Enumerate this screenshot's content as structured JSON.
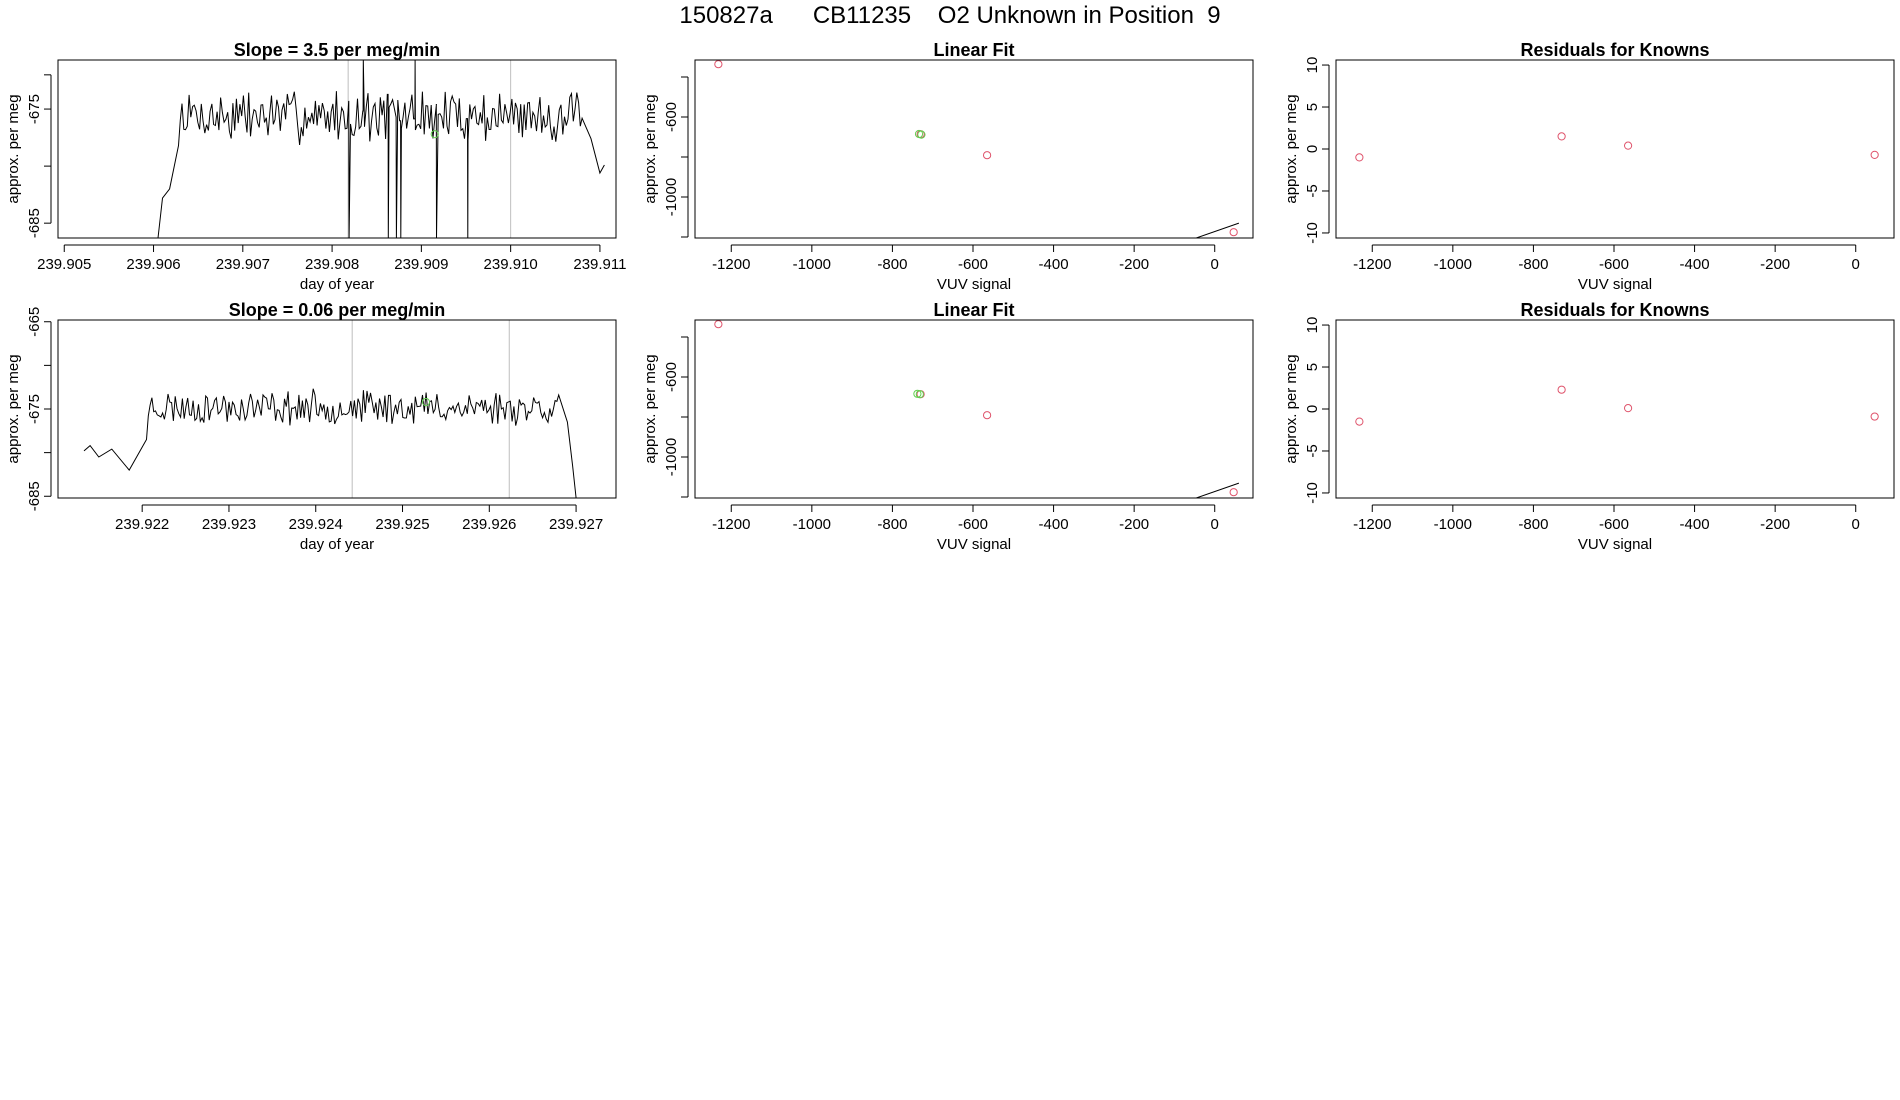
{
  "page": {
    "title": "150827a      CB11235    O2 Unknown in Position  9"
  },
  "colors": {
    "axis": "#000000",
    "line": "#000000",
    "vline": "#bebebe",
    "known_point": "#df536b",
    "unknown_point": "#61d04f"
  },
  "chart_data": [
    {
      "type": "line",
      "title": "Slope =  3.5  per meg/min",
      "xlabel": "day of year",
      "ylabel": "approx. per meg",
      "xlim": [
        239.90493,
        239.91118
      ],
      "ylim": [
        -686.3,
        -670.7
      ],
      "xticks": [
        "239.905",
        "239.906",
        "239.907",
        "239.908",
        "239.909",
        "239.910",
        "239.911"
      ],
      "xtick_values": [
        239.905,
        239.906,
        239.907,
        239.908,
        239.909,
        239.91,
        239.911
      ],
      "yticks": [
        "-685",
        "-675"
      ],
      "ytick_values": [
        -685,
        -675
      ],
      "ytick_minor_values": [
        -680,
        -672
      ],
      "vlines": [
        239.90818,
        239.91
      ],
      "green_point": {
        "x": 239.90915,
        "y": -677.2
      },
      "series": [
        {
          "name": "trace",
          "start": 239.90605,
          "end": 239.91105,
          "drops": [
            [
              239.90819,
              -686.3
            ],
            [
              239.90835,
              -670.7
            ],
            [
              239.90863,
              -686.3
            ],
            [
              239.90872,
              -686.3
            ],
            [
              239.90877,
              -686.3
            ],
            [
              239.90893,
              -670.7
            ],
            [
              239.90917,
              -686.3
            ],
            [
              239.90952,
              -686.3
            ]
          ],
          "seed": 7,
          "mean": -675.6,
          "amp": 1.9,
          "ramp": [
            [
              239.90605,
              -686.3
            ],
            [
              239.9061,
              -682.8
            ],
            [
              239.90618,
              -682.0
            ],
            [
              239.90628,
              -678.2
            ]
          ],
          "tail": [
            [
              239.9108,
              -675.8
            ],
            [
              239.9109,
              -677.6
            ],
            [
              239.911,
              -680.6
            ],
            [
              239.91105,
              -679.9
            ]
          ]
        }
      ]
    },
    {
      "type": "scatter",
      "title": "Linear Fit",
      "xlabel": "VUV signal",
      "ylabel": "approx. per meg",
      "xlim": [
        -1290,
        95
      ],
      "ylim": [
        -1205,
        -315
      ],
      "xticks": [
        "-1200",
        "-1000",
        "-800",
        "-600",
        "-400",
        "-200",
        "0"
      ],
      "xtick_values": [
        -1200,
        -1000,
        -800,
        -600,
        -400,
        -200,
        0
      ],
      "yticks": [
        "-600",
        "-1000"
      ],
      "ytick_values": [
        -600,
        -1000
      ],
      "ytick_minor_values": [
        -400,
        -800,
        -1200
      ],
      "fit_line": {
        "slope": 0.7003,
        "intercept": -1172.8,
        "x0": -1265,
        "x1": 60
      },
      "known_points": [
        {
          "x": -1232,
          "y": -336
        },
        {
          "x": -730,
          "y": -686
        },
        {
          "x": -565,
          "y": -791
        },
        {
          "x": 47,
          "y": -1176
        }
      ],
      "unknown_points": [
        {
          "x": -734,
          "y": -685
        },
        {
          "x": -728,
          "y": -688
        }
      ]
    },
    {
      "type": "scatter",
      "title": "Residuals for Knowns",
      "xlabel": "VUV signal",
      "ylabel": "approx. per meg",
      "xlim": [
        -1290,
        95
      ],
      "ylim": [
        -10.6,
        10.6
      ],
      "xticks": [
        "-1200",
        "-1000",
        "-800",
        "-600",
        "-400",
        "-200",
        "0"
      ],
      "xtick_values": [
        -1200,
        -1000,
        -800,
        -600,
        -400,
        -200,
        0
      ],
      "yticks": [
        "10",
        "5",
        "0",
        "-5",
        "-10"
      ],
      "ytick_values": [
        10,
        5,
        0,
        -5,
        -10
      ],
      "known_points": [
        {
          "x": -1232,
          "y": -1.0
        },
        {
          "x": -730,
          "y": 1.5
        },
        {
          "x": -565,
          "y": 0.4
        },
        {
          "x": 47,
          "y": -0.7
        }
      ]
    },
    {
      "type": "line",
      "title": "Slope =  0.06  per meg/min",
      "xlabel": "day of year",
      "ylabel": "approx. per meg",
      "xlim": [
        239.92103,
        239.92746
      ],
      "ylim": [
        -685.2,
        -664.8
      ],
      "xticks": [
        "239.922",
        "239.923",
        "239.924",
        "239.925",
        "239.926",
        "239.927"
      ],
      "xtick_values": [
        239.922,
        239.923,
        239.924,
        239.925,
        239.926,
        239.927
      ],
      "yticks": [
        "-665",
        "-675",
        "-685"
      ],
      "ytick_values": [
        -665,
        -675,
        -685
      ],
      "ytick_minor_values": [
        -670,
        -680
      ],
      "vlines": [
        239.92442,
        239.92623
      ],
      "green_point": {
        "x": 239.92527,
        "y": -674.2
      },
      "series": [
        {
          "name": "trace",
          "start": 239.92133,
          "end": 239.927,
          "drops": [],
          "seed": 23,
          "mean": -674.8,
          "amp": 1.6,
          "ramp": [
            [
              239.92133,
              -679.8
            ],
            [
              239.9214,
              -679.2
            ],
            [
              239.9215,
              -680.5
            ],
            [
              239.92165,
              -679.6
            ],
            [
              239.92185,
              -682.0
            ],
            [
              239.92205,
              -678.5
            ]
          ],
          "tail": [
            [
              239.9268,
              -673.4
            ],
            [
              239.9269,
              -676.5
            ],
            [
              239.92696,
              -681.5
            ],
            [
              239.927,
              -685.2
            ]
          ]
        }
      ]
    },
    {
      "type": "scatter",
      "title": "Linear Fit",
      "xlabel": "VUV signal",
      "ylabel": "approx. per meg",
      "xlim": [
        -1290,
        95
      ],
      "ylim": [
        -1205,
        -315
      ],
      "xticks": [
        "-1200",
        "-1000",
        "-800",
        "-600",
        "-400",
        "-200",
        "0"
      ],
      "xtick_values": [
        -1200,
        -1000,
        -800,
        -600,
        -400,
        -200,
        0
      ],
      "yticks": [
        "-600",
        "-1000"
      ],
      "ytick_values": [
        -600,
        -1000
      ],
      "ytick_minor_values": [
        -400,
        -800,
        -1200
      ],
      "fit_line": {
        "slope": 0.7003,
        "intercept": -1172.8,
        "x0": -1265,
        "x1": 60
      },
      "known_points": [
        {
          "x": -1232,
          "y": -336
        },
        {
          "x": -730,
          "y": -686
        },
        {
          "x": -565,
          "y": -791
        },
        {
          "x": 47,
          "y": -1176
        }
      ],
      "unknown_points": [
        {
          "x": -738,
          "y": -684
        },
        {
          "x": -732,
          "y": -686
        }
      ]
    },
    {
      "type": "scatter",
      "title": "Residuals for Knowns",
      "xlabel": "VUV signal",
      "ylabel": "approx. per meg",
      "xlim": [
        -1290,
        95
      ],
      "ylim": [
        -10.6,
        10.6
      ],
      "xticks": [
        "-1200",
        "-1000",
        "-800",
        "-600",
        "-400",
        "-200",
        "0"
      ],
      "xtick_values": [
        -1200,
        -1000,
        -800,
        -600,
        -400,
        -200,
        0
      ],
      "yticks": [
        "10",
        "5",
        "0",
        "-5",
        "-10"
      ],
      "ytick_values": [
        10,
        5,
        0,
        -5,
        -10
      ],
      "known_points": [
        {
          "x": -1232,
          "y": -1.5
        },
        {
          "x": -730,
          "y": 2.3
        },
        {
          "x": -565,
          "y": 0.1
        },
        {
          "x": 47,
          "y": -0.9
        }
      ]
    }
  ]
}
